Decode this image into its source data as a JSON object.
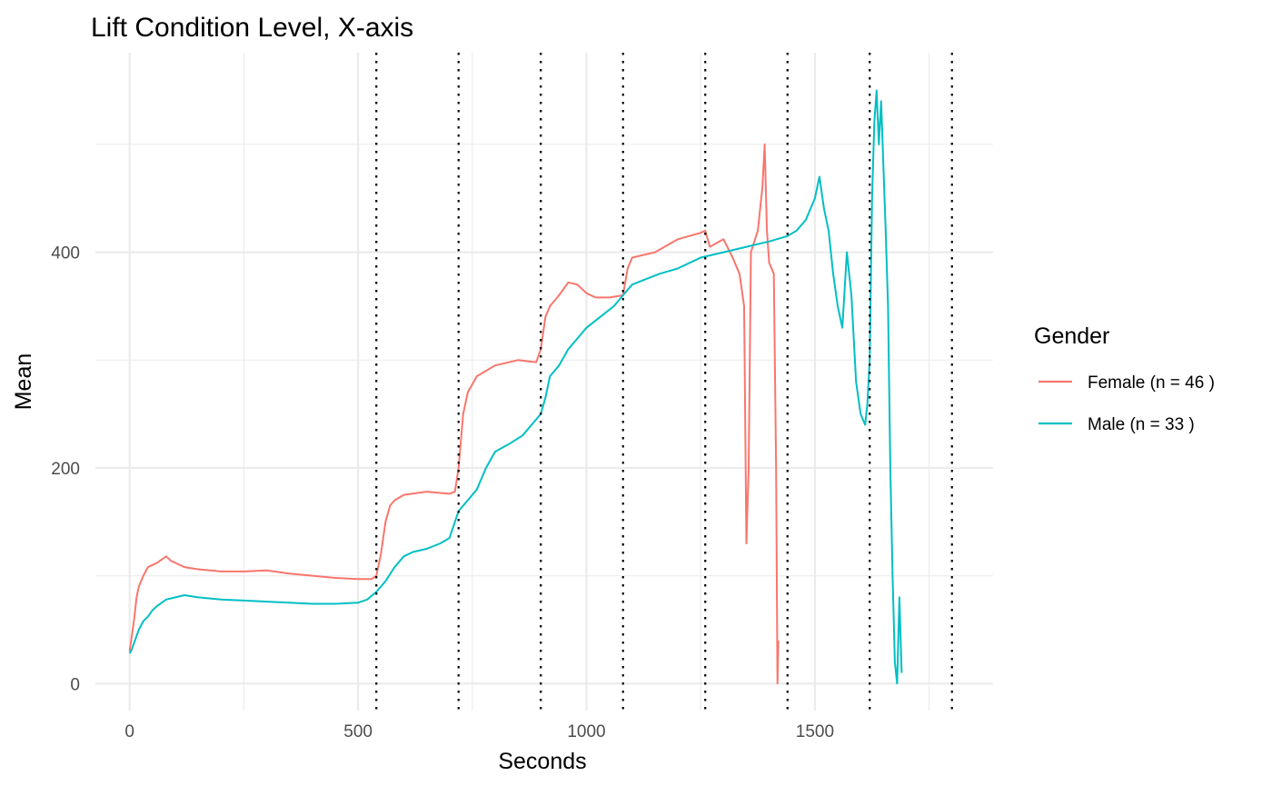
{
  "chart_data": {
    "type": "line",
    "title": "Lift Condition Level, X-axis",
    "xlabel": "Seconds",
    "ylabel": "Mean",
    "xlim": [
      -75,
      1890
    ],
    "ylim": [
      -25,
      585
    ],
    "x_ticks": [
      0,
      500,
      1000,
      1500
    ],
    "x_tick_labels": [
      "0",
      "500",
      "1000",
      "1500"
    ],
    "x_minor_ticks": [
      250,
      750,
      1250,
      1750
    ],
    "y_ticks": [
      0,
      200,
      400
    ],
    "y_tick_labels": [
      "0",
      "200",
      "400"
    ],
    "y_minor_ticks": [
      100,
      300,
      500
    ],
    "grid": true,
    "vertical_reference_lines": [
      540,
      720,
      900,
      1080,
      1260,
      1440,
      1620,
      1800
    ],
    "legend": {
      "title": "Gender",
      "position": "right"
    },
    "series": [
      {
        "name": "Female (n = 46 )",
        "color": "#F8766D",
        "points": [
          [
            0,
            30
          ],
          [
            5,
            45
          ],
          [
            10,
            60
          ],
          [
            15,
            80
          ],
          [
            20,
            90
          ],
          [
            30,
            100
          ],
          [
            40,
            108
          ],
          [
            50,
            110
          ],
          [
            60,
            112
          ],
          [
            70,
            115
          ],
          [
            80,
            118
          ],
          [
            90,
            114
          ],
          [
            100,
            112
          ],
          [
            120,
            108
          ],
          [
            150,
            106
          ],
          [
            200,
            104
          ],
          [
            250,
            104
          ],
          [
            300,
            105
          ],
          [
            350,
            102
          ],
          [
            400,
            100
          ],
          [
            450,
            98
          ],
          [
            500,
            97
          ],
          [
            530,
            97
          ],
          [
            540,
            100
          ],
          [
            550,
            120
          ],
          [
            560,
            150
          ],
          [
            570,
            165
          ],
          [
            580,
            170
          ],
          [
            600,
            175
          ],
          [
            650,
            178
          ],
          [
            700,
            176
          ],
          [
            712,
            178
          ],
          [
            720,
            200
          ],
          [
            730,
            250
          ],
          [
            740,
            270
          ],
          [
            760,
            285
          ],
          [
            800,
            295
          ],
          [
            850,
            300
          ],
          [
            890,
            298
          ],
          [
            900,
            310
          ],
          [
            910,
            340
          ],
          [
            920,
            350
          ],
          [
            940,
            360
          ],
          [
            960,
            372
          ],
          [
            980,
            370
          ],
          [
            1000,
            362
          ],
          [
            1020,
            358
          ],
          [
            1050,
            358
          ],
          [
            1080,
            360
          ],
          [
            1090,
            385
          ],
          [
            1100,
            395
          ],
          [
            1150,
            400
          ],
          [
            1200,
            412
          ],
          [
            1250,
            418
          ],
          [
            1260,
            420
          ],
          [
            1270,
            405
          ],
          [
            1300,
            412
          ],
          [
            1320,
            395
          ],
          [
            1335,
            380
          ],
          [
            1345,
            350
          ],
          [
            1350,
            130
          ],
          [
            1355,
            200
          ],
          [
            1360,
            400
          ],
          [
            1375,
            420
          ],
          [
            1385,
            460
          ],
          [
            1390,
            500
          ],
          [
            1395,
            420
          ],
          [
            1400,
            390
          ],
          [
            1410,
            380
          ],
          [
            1415,
            200
          ],
          [
            1418,
            0
          ],
          [
            1420,
            40
          ]
        ]
      },
      {
        "name": "Male (n = 33 )",
        "color": "#00BFC4",
        "points": [
          [
            0,
            28
          ],
          [
            5,
            32
          ],
          [
            10,
            38
          ],
          [
            20,
            50
          ],
          [
            30,
            58
          ],
          [
            40,
            62
          ],
          [
            50,
            68
          ],
          [
            60,
            72
          ],
          [
            80,
            78
          ],
          [
            100,
            80
          ],
          [
            120,
            82
          ],
          [
            150,
            80
          ],
          [
            200,
            78
          ],
          [
            250,
            77
          ],
          [
            300,
            76
          ],
          [
            350,
            75
          ],
          [
            400,
            74
          ],
          [
            450,
            74
          ],
          [
            500,
            75
          ],
          [
            520,
            78
          ],
          [
            540,
            85
          ],
          [
            560,
            95
          ],
          [
            580,
            108
          ],
          [
            600,
            118
          ],
          [
            620,
            122
          ],
          [
            650,
            125
          ],
          [
            680,
            130
          ],
          [
            700,
            135
          ],
          [
            720,
            160
          ],
          [
            740,
            170
          ],
          [
            760,
            180
          ],
          [
            780,
            200
          ],
          [
            800,
            215
          ],
          [
            830,
            222
          ],
          [
            860,
            230
          ],
          [
            900,
            250
          ],
          [
            910,
            265
          ],
          [
            920,
            285
          ],
          [
            940,
            295
          ],
          [
            960,
            310
          ],
          [
            980,
            320
          ],
          [
            1000,
            330
          ],
          [
            1030,
            340
          ],
          [
            1060,
            350
          ],
          [
            1080,
            360
          ],
          [
            1100,
            370
          ],
          [
            1130,
            375
          ],
          [
            1160,
            380
          ],
          [
            1200,
            385
          ],
          [
            1250,
            395
          ],
          [
            1300,
            400
          ],
          [
            1350,
            405
          ],
          [
            1400,
            410
          ],
          [
            1440,
            415
          ],
          [
            1460,
            420
          ],
          [
            1480,
            430
          ],
          [
            1500,
            450
          ],
          [
            1510,
            470
          ],
          [
            1520,
            440
          ],
          [
            1530,
            420
          ],
          [
            1540,
            380
          ],
          [
            1550,
            350
          ],
          [
            1560,
            330
          ],
          [
            1570,
            400
          ],
          [
            1580,
            360
          ],
          [
            1590,
            280
          ],
          [
            1600,
            250
          ],
          [
            1610,
            240
          ],
          [
            1615,
            260
          ],
          [
            1620,
            300
          ],
          [
            1625,
            450
          ],
          [
            1630,
            520
          ],
          [
            1635,
            550
          ],
          [
            1640,
            500
          ],
          [
            1645,
            540
          ],
          [
            1650,
            480
          ],
          [
            1655,
            420
          ],
          [
            1660,
            350
          ],
          [
            1665,
            200
          ],
          [
            1670,
            100
          ],
          [
            1675,
            20
          ],
          [
            1680,
            0
          ],
          [
            1685,
            80
          ],
          [
            1690,
            10
          ]
        ]
      }
    ]
  }
}
